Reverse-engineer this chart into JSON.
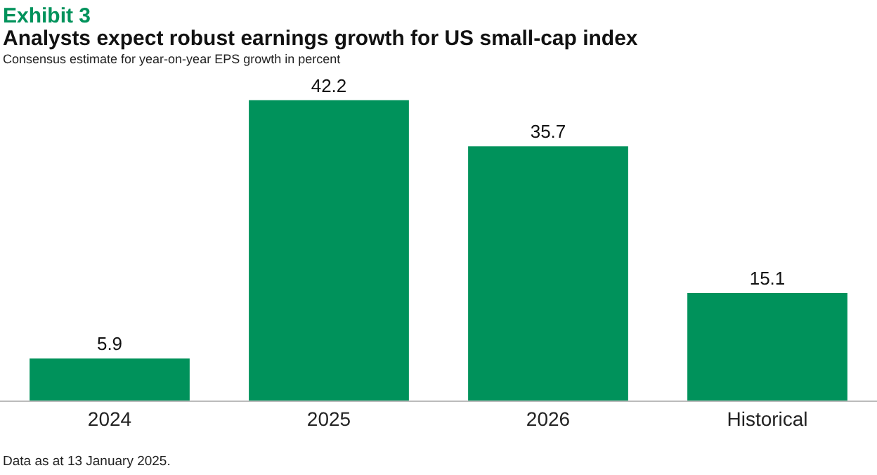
{
  "chart_data": {
    "type": "bar",
    "title": "Exhibit 3",
    "subtitle": "Analysts expect robust earnings growth for US small-cap index",
    "annotations": [
      "Consensus estimate for year-on-year EPS growth in percent",
      "Data as at 13 January 2025."
    ],
    "categories": [
      "2024",
      "2025",
      "2026",
      "Historical"
    ],
    "values": [
      5.9,
      42.2,
      35.7,
      15.1
    ],
    "color": "#00925b",
    "data_labels": true
  }
}
